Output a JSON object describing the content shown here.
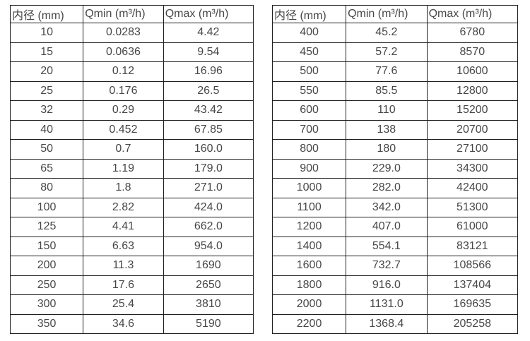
{
  "page": {
    "background_color": "#ffffff",
    "text_color": "#474747",
    "border_color": "#1f1f1f"
  },
  "tables": [
    {
      "title": "flow-rate-table-dn10-350",
      "headers": [
        "内径 (mm)",
        "Qmin (m³/h)",
        "Qmax (m³/h)"
      ],
      "rows": [
        [
          "10",
          "0.0283",
          "4.42"
        ],
        [
          "15",
          "0.0636",
          "9.54"
        ],
        [
          "20",
          "0.12",
          "16.96"
        ],
        [
          "25",
          "0.176",
          "26.5"
        ],
        [
          "32",
          "0.29",
          "43.42"
        ],
        [
          "40",
          "0.452",
          "67.85"
        ],
        [
          "50",
          "0.7",
          "160.0"
        ],
        [
          "65",
          "1.19",
          "179.0"
        ],
        [
          "80",
          "1.8",
          "271.0"
        ],
        [
          "100",
          "2.82",
          "424.0"
        ],
        [
          "125",
          "4.41",
          "662.0"
        ],
        [
          "150",
          "6.63",
          "954.0"
        ],
        [
          "200",
          "11.3",
          "1690"
        ],
        [
          "250",
          "17.6",
          "2650"
        ],
        [
          "300",
          "25.4",
          "3810"
        ],
        [
          "350",
          "34.6",
          "5190"
        ]
      ]
    },
    {
      "title": "flow-rate-table-dn400-2200",
      "headers": [
        "内径 (mm)",
        "Qmin (m³/h)",
        "Qmax (m³/h)"
      ],
      "rows": [
        [
          "400",
          "45.2",
          "6780"
        ],
        [
          "450",
          "57.2",
          "8570"
        ],
        [
          "500",
          "77.6",
          "10600"
        ],
        [
          "550",
          "85.5",
          "12800"
        ],
        [
          "600",
          "110",
          "15200"
        ],
        [
          "700",
          "138",
          "20700"
        ],
        [
          "800",
          "180",
          "27100"
        ],
        [
          "900",
          "229.0",
          "34300"
        ],
        [
          "1000",
          "282.0",
          "42400"
        ],
        [
          "1100",
          "342.0",
          "51300"
        ],
        [
          "1200",
          "407.0",
          "61000"
        ],
        [
          "1400",
          "554.1",
          "83121"
        ],
        [
          "1600",
          "732.7",
          "108566"
        ],
        [
          "1800",
          "916.0",
          "137404"
        ],
        [
          "2000",
          "1131.0",
          "169635"
        ],
        [
          "2200",
          "1368.4",
          "205258"
        ]
      ]
    }
  ]
}
